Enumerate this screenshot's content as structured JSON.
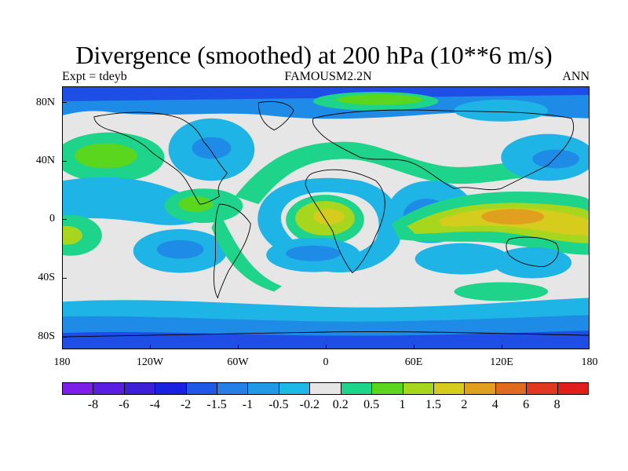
{
  "title": "Divergence (smoothed) at 200 hPa (10**6 m/s)",
  "subtitle_left": "Expt = tdeyb",
  "subtitle_center": "FAMOUSM2.2N",
  "subtitle_right": "ANN",
  "axes": {
    "y_labels": [
      "80N",
      "40N",
      "0",
      "40S",
      "80S"
    ],
    "x_labels": [
      "180",
      "120W",
      "60W",
      "0",
      "60E",
      "120E",
      "180"
    ]
  },
  "colorbar": {
    "colors": [
      "#7a1fe6",
      "#5a1ee0",
      "#3d20d6",
      "#1a22e0",
      "#1e5ae6",
      "#2480e6",
      "#1e9ae6",
      "#1eb8e6",
      "#e6e6e6",
      "#1ed48a",
      "#5ad61e",
      "#a6d61e",
      "#d6cc1e",
      "#e0a01e",
      "#e06a1e",
      "#e03a1e",
      "#e01e1e"
    ],
    "labels": [
      "-8",
      "-6",
      "-4",
      "-2",
      "-1.5",
      "-1",
      "-0.5",
      "-0.2",
      "0.2",
      "0.5",
      "1",
      "1.5",
      "2",
      "4",
      "6",
      "8"
    ]
  },
  "map_colors": {
    "background": "#e6e6e6",
    "deep_blue": "#1e4ee6",
    "mid_blue": "#1e8ce6",
    "light_blue": "#1eb4e6",
    "teal_green": "#1ed48a",
    "green": "#5ad61e",
    "yellow_green": "#a6d61e",
    "yellow": "#d6cc1e",
    "orange": "#e0a01e"
  }
}
